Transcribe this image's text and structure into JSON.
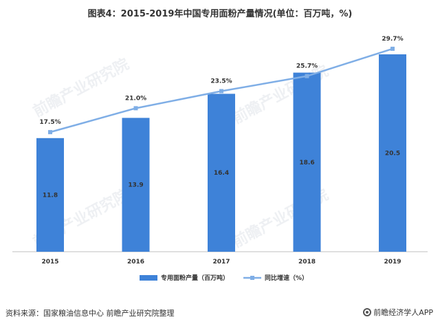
{
  "title": "图表4：2015-2019年中国专用面粉产量情况(单位：百万吨，%)",
  "source": "资料来源：国家粮油信息中心 前瞻产业研究院整理",
  "brand": "前瞻经济学人APP",
  "watermark": "前瞻产业研究院",
  "colors": {
    "bar": "#3e82d8",
    "line": "#7faee6",
    "axis": "#bfbfbf",
    "text": "#333333"
  },
  "chart_data": {
    "type": "bar",
    "categories": [
      "2015",
      "2016",
      "2017",
      "2018",
      "2019"
    ],
    "series": [
      {
        "name": "专用面粉产量（百万吨）",
        "type": "bar",
        "values": [
          11.8,
          13.9,
          16.4,
          18.6,
          20.5
        ],
        "labels": [
          "11.8",
          "13.9",
          "16.4",
          "18.6",
          "20.5"
        ]
      },
      {
        "name": "同比增速（%）",
        "type": "line",
        "values": [
          17.5,
          21.0,
          23.5,
          25.7,
          29.7
        ],
        "labels": [
          "17.5%",
          "21.0%",
          "23.5%",
          "25.7%",
          "29.7%"
        ]
      }
    ],
    "ylim_bar": [
      0,
      22
    ],
    "ylim_line": [
      0,
      31
    ],
    "legend_position": "bottom",
    "grid": false
  }
}
